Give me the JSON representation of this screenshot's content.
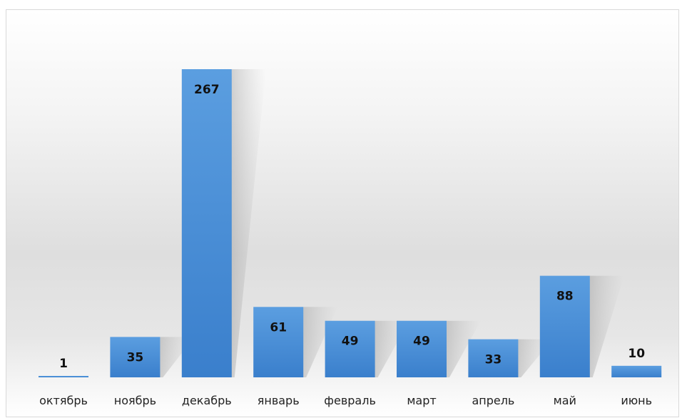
{
  "chart_data": {
    "type": "bar",
    "title": "",
    "xlabel": "",
    "ylabel": "",
    "categories": [
      "октябрь",
      "ноябрь",
      "декабрь",
      "январь",
      "февраль",
      "март",
      "апрель",
      "май",
      "июнь"
    ],
    "values": [
      1,
      35,
      267,
      61,
      49,
      49,
      33,
      88,
      10
    ],
    "ylim": [
      0,
      267
    ],
    "grid": false,
    "legend": "none",
    "data_labels": true,
    "bar_color": "#4a8fd6"
  }
}
